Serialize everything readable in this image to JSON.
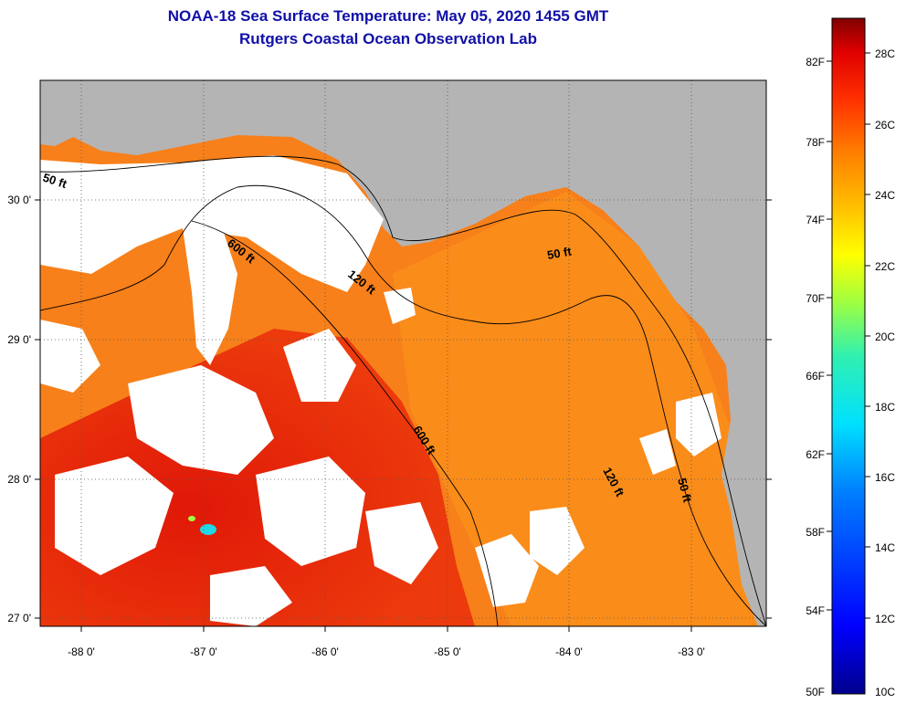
{
  "title": {
    "line1": "NOAA-18 Sea Surface Temperature:  May 05, 2020 1455 GMT",
    "line2": "Rutgers Coastal Ocean Observation Lab"
  },
  "map": {
    "lon_ticks": [
      "-88 0'",
      "-87 0'",
      "-86 0'",
      "-85 0'",
      "-84 0'",
      "-83 0'"
    ],
    "lat_ticks": [
      "30 0'",
      "29 0'",
      "28 0'",
      "27 0'"
    ],
    "contour_labels": [
      "50 ft",
      "600 ft",
      "120 ft",
      "50 ft",
      "600 ft",
      "120 ft",
      "50 ft"
    ],
    "colors": {
      "land": "#b4b4b4",
      "cloud": "#ffffff",
      "warm": "#f87a10",
      "hot": "#e41c0c",
      "mid": "#fc9a14",
      "cool": "#20d8e8"
    }
  },
  "colorbar": {
    "fahrenheit": [
      "82F",
      "78F",
      "74F",
      "70F",
      "66F",
      "62F",
      "58F",
      "54F",
      "50F"
    ],
    "celsius": [
      "28C",
      "26C",
      "24C",
      "22C",
      "20C",
      "18C",
      "16C",
      "14C",
      "12C",
      "10C"
    ],
    "colors": [
      "#00008c",
      "#0000ff",
      "#0080ff",
      "#00e0ff",
      "#30f0b0",
      "#a0ff40",
      "#ffff00",
      "#ffc000",
      "#ff8000",
      "#ff3000",
      "#e00000",
      "#800000"
    ]
  }
}
